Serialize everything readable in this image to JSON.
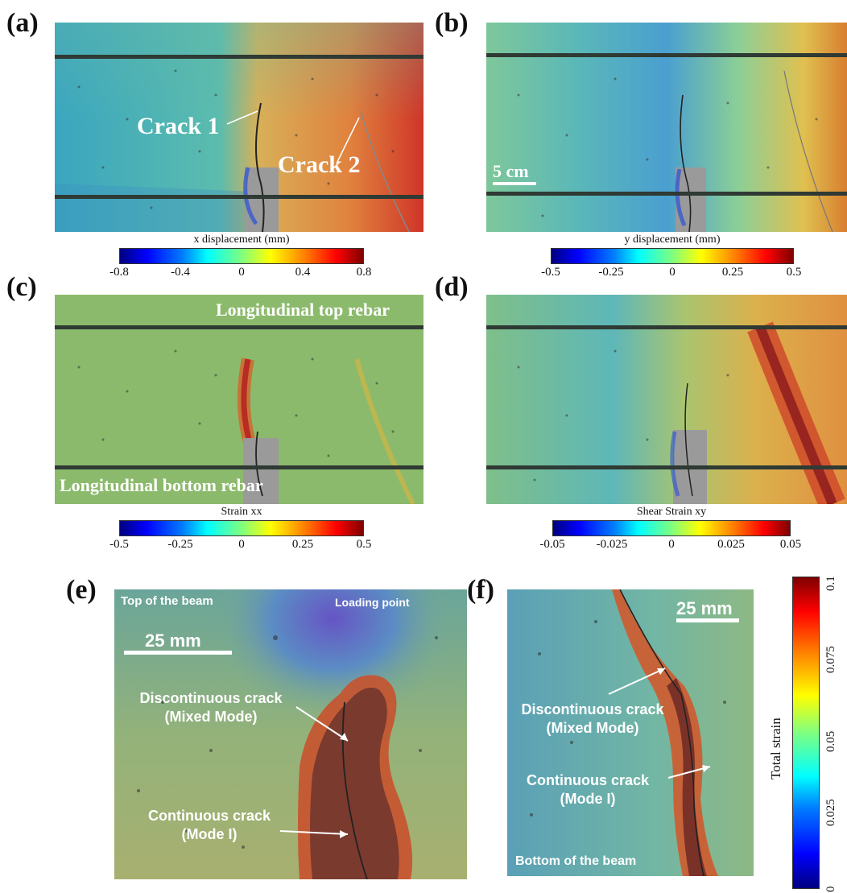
{
  "panel_labels": {
    "a": "(a)",
    "b": "(b)",
    "c": "(c)",
    "d": "(d)",
    "e": "(e)",
    "f": "(f)"
  },
  "panel_a": {
    "crack1": "Crack 1",
    "crack2": "Crack 2"
  },
  "panel_b": {
    "scale": "5 cm"
  },
  "panel_c": {
    "top_rebar": "Longitudinal top rebar",
    "bottom_rebar": "Longitudinal bottom rebar"
  },
  "panel_e": {
    "top": "Top of the beam",
    "loading": "Loading point",
    "scale": "25 mm",
    "discont_1": "Discontinuous crack",
    "discont_2": "(Mixed Mode)",
    "cont_1": "Continuous crack",
    "cont_2": "(Mode I)"
  },
  "panel_f": {
    "scale": "25 mm",
    "discont_1": "Discontinuous crack",
    "discont_2": "(Mixed Mode)",
    "cont_1": "Continuous crack",
    "cont_2": "(Mode I)",
    "bottom": "Bottom of the beam"
  },
  "colorbars": {
    "a": {
      "title": "x displacement (mm)",
      "ticks": [
        "-0.8",
        "-0.4",
        "0",
        "0.4",
        "0.8"
      ]
    },
    "b": {
      "title": "y displacement (mm)",
      "ticks": [
        "-0.5",
        "-0.25",
        "0",
        "0.25",
        "0.5"
      ]
    },
    "c": {
      "title": "Strain xx",
      "ticks": [
        "-0.5",
        "-0.25",
        "0",
        "0.25",
        "0.5"
      ]
    },
    "d": {
      "title": "Shear Strain xy",
      "ticks": [
        "-0.05",
        "-0.025",
        "0",
        "0.025",
        "0.05"
      ]
    },
    "ef": {
      "title": "Total strain",
      "ticks": [
        "0",
        "0.025",
        "0.05",
        "0.075",
        "0.1"
      ]
    }
  },
  "colors": {
    "jet_low": "#00007f",
    "jet_mid": "#7fff7f",
    "jet_high": "#7f0000",
    "rebar": "#2f3a34"
  }
}
